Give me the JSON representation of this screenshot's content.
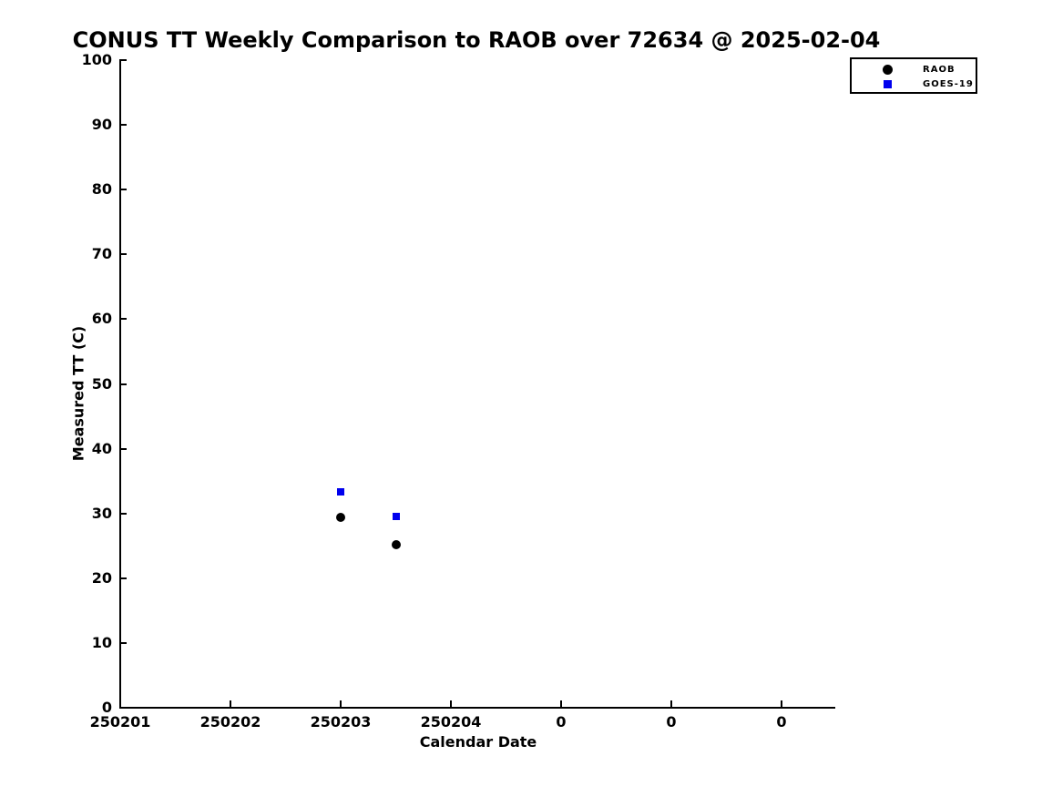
{
  "title": "CONUS TT Weekly Comparison to RAOB over 72634 @ 2025-02-04",
  "colors": {
    "raob": "#000000",
    "goes19": "#0000ee",
    "axis": "#000000",
    "background": "#ffffff"
  },
  "legend": {
    "position": "top-right",
    "raob_label": "RAOB",
    "goes19_label": "GOES-19"
  },
  "chart_data": {
    "type": "scatter",
    "title": "CONUS TT Weekly Comparison to RAOB over 72634 @ 2025-02-04",
    "xlabel": "Calendar Date",
    "ylabel": "Measured TT (C)",
    "ylim": [
      0,
      100
    ],
    "yticks": [
      0,
      10,
      20,
      30,
      40,
      50,
      60,
      70,
      80,
      90,
      100
    ],
    "xtick_labels": [
      "250201",
      "250202",
      "250203",
      "250204",
      "0",
      "0",
      "0"
    ],
    "grid": false,
    "legend_position": "top-right",
    "tick_direction": "in",
    "series": [
      {
        "name": "RAOB",
        "marker": "circle",
        "color": "#000000",
        "points": [
          {
            "x": 2.0,
            "y": 29.4
          },
          {
            "x": 2.5,
            "y": 25.2
          }
        ]
      },
      {
        "name": "GOES-19",
        "marker": "square",
        "color": "#0000ee",
        "points": [
          {
            "x": 2.0,
            "y": 33.3
          },
          {
            "x": 2.5,
            "y": 29.5
          }
        ]
      }
    ],
    "x_axis_note": "x expressed as tick index offset from first tick (250201)"
  }
}
